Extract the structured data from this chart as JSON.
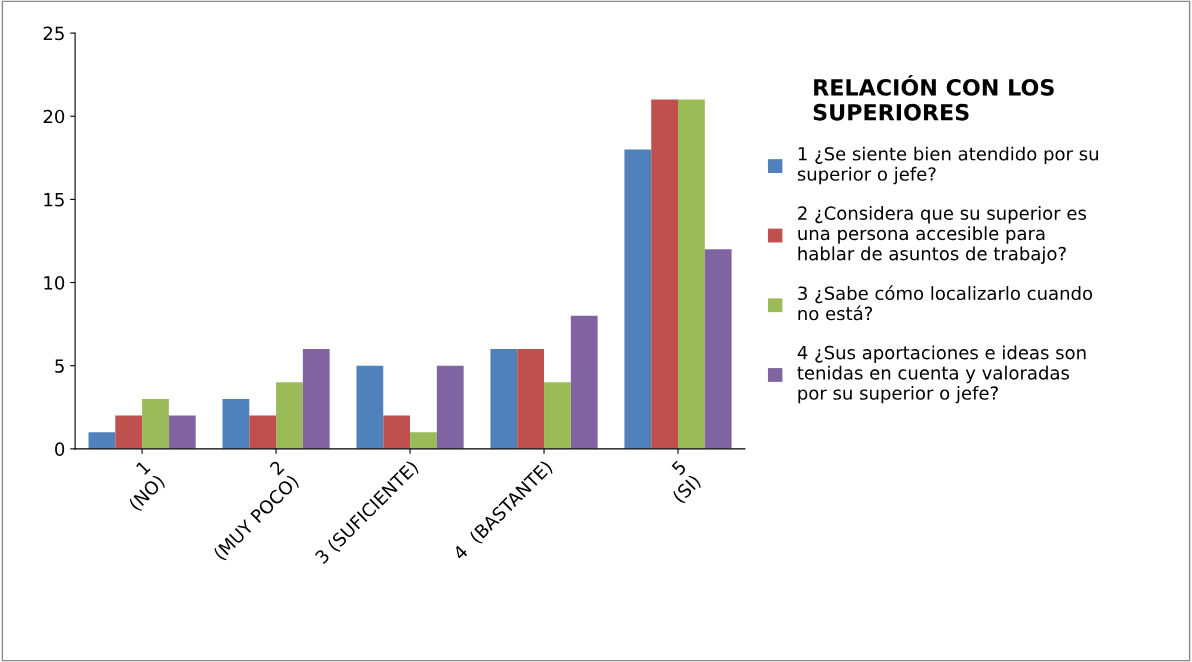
{
  "chart_data": {
    "type": "bar",
    "legend_title": "RELACIÓN CON LOS\nSUPERIORES",
    "categories": [
      "1\n(NO)",
      "2\n(MUY POCO)",
      "3 (SUFICIENTE)",
      "4  (BASTANTE)",
      "5\n(SI)"
    ],
    "series": [
      {
        "name": "1 ¿Se siente bien atendido por su\nsuperior o jefe?",
        "color": "#4f81bd",
        "values": [
          1,
          3,
          5,
          6,
          18
        ]
      },
      {
        "name": "2 ¿Considera que su superior es\nuna persona accesible para\nhablar de asuntos de trabajo?",
        "color": "#c0504d",
        "values": [
          2,
          2,
          2,
          6,
          21
        ]
      },
      {
        "name": "3 ¿Sabe cómo localizarlo cuando\nno está?",
        "color": "#9bbb59",
        "values": [
          3,
          4,
          1,
          4,
          21
        ]
      },
      {
        "name": "4 ¿Sus aportaciones e ideas son\ntenidas en cuenta y valoradas\npor su superior o jefe?",
        "color": "#8064a2",
        "values": [
          2,
          6,
          5,
          8,
          12
        ]
      }
    ],
    "ylim": [
      0,
      25
    ],
    "yticks": [
      0,
      5,
      10,
      15,
      20,
      25
    ],
    "grid": false,
    "legend": "right"
  }
}
